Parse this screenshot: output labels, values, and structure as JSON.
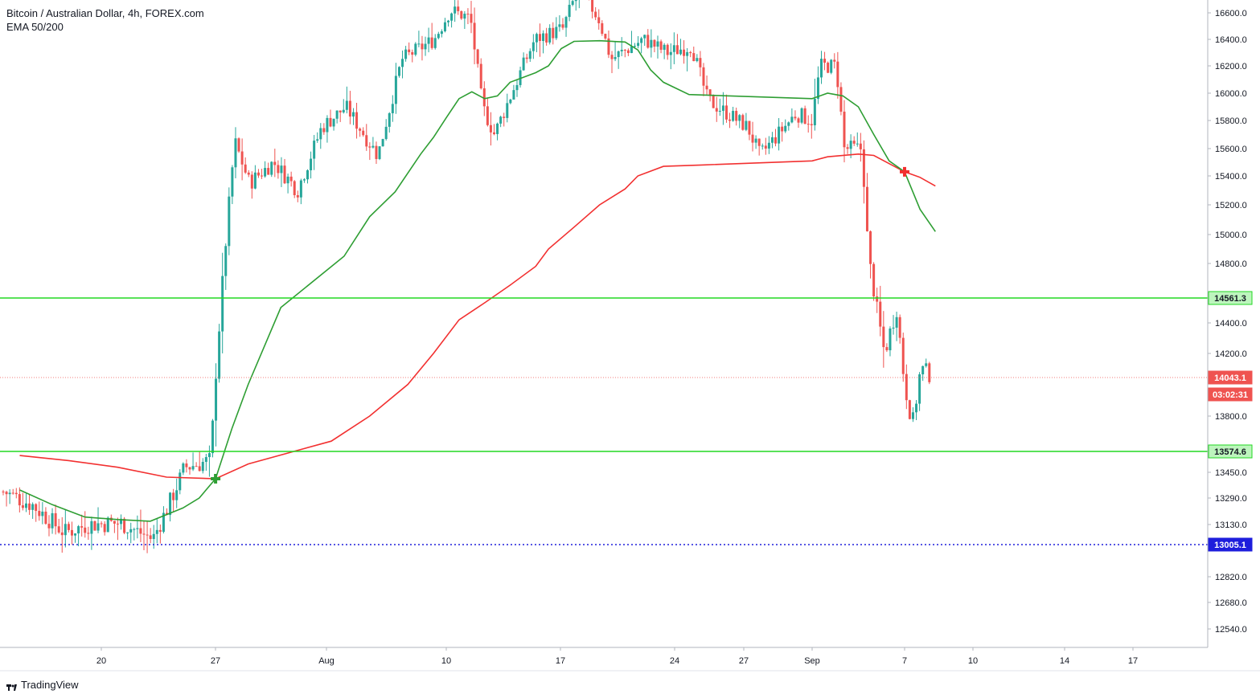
{
  "header": {
    "title": "Bitcoin / Australian Dollar, 4h, FOREX.com",
    "indicator": "EMA 50/200"
  },
  "footer": {
    "brand": "TradingView"
  },
  "colors": {
    "up": "#26a69a",
    "down": "#ef5350",
    "ema50": "#2e9e33",
    "ema200": "#f23030",
    "level": "#22d822",
    "low_line": "#1e1edc",
    "price_line": "#ef5350",
    "grid": "#f0f3fa"
  },
  "chart_data": {
    "type": "candlestick",
    "symbol": "BTCAUD",
    "timeframe": "4h",
    "x_ticks": [
      "20",
      "27",
      "Aug",
      "10",
      "17",
      "24",
      "27",
      "Sep",
      "7",
      "10",
      "14",
      "17"
    ],
    "y_ticks": [
      16600.0,
      16400.0,
      16200.0,
      16000.0,
      15800.0,
      15600.0,
      15400.0,
      15200.0,
      15000.0,
      14800.0,
      14400.0,
      14200.0,
      13800.0,
      13450.0,
      13290.0,
      13130.0,
      12820.0,
      12680.0,
      12540.0
    ],
    "levels": [
      {
        "name": "resistance",
        "value": 14561.3,
        "label": "14561.3",
        "style": "solid"
      },
      {
        "name": "support",
        "value": 13574.6,
        "label": "13574.6",
        "style": "solid"
      },
      {
        "name": "low",
        "value": 13005.1,
        "label": "13005.1",
        "style": "dotted"
      }
    ],
    "last_price": {
      "value": 14043.1,
      "label": "14043.1",
      "countdown": "03:02:31"
    },
    "ema_crosses": [
      {
        "type": "golden",
        "date": "Jul 27",
        "value": 13410
      },
      {
        "type": "death",
        "date": "Sep 7",
        "value": 15430
      }
    ],
    "ema50": [
      [
        "Jul 15",
        13340
      ],
      [
        "Jul 17",
        13250
      ],
      [
        "Jul 19",
        13175
      ],
      [
        "Jul 21",
        13160
      ],
      [
        "Jul 23",
        13150
      ],
      [
        "Jul 25",
        13230
      ],
      [
        "Jul 26",
        13290
      ],
      [
        "Jul 27",
        13410
      ],
      [
        "Jul 28",
        13720
      ],
      [
        "Jul 29",
        14000
      ],
      [
        "Jul 31",
        14500
      ],
      [
        "Aug 2",
        14850
      ],
      [
        "Aug 4",
        15120
      ],
      [
        "Aug 6",
        15290
      ],
      [
        "Aug 8",
        15560
      ],
      [
        "Aug 9",
        15680
      ],
      [
        "Aug 10",
        15820
      ],
      [
        "Aug 11",
        15960
      ],
      [
        "Aug 12",
        16010
      ],
      [
        "Aug 13",
        15960
      ],
      [
        "Aug 14",
        15980
      ],
      [
        "Aug 15",
        16080
      ],
      [
        "Aug 17",
        16150
      ],
      [
        "Aug 18",
        16200
      ],
      [
        "Aug 19",
        16330
      ],
      [
        "Aug 20",
        16385
      ],
      [
        "Aug 22",
        16390
      ],
      [
        "Aug 24",
        16380
      ],
      [
        "Aug 25",
        16320
      ],
      [
        "Aug 26",
        16170
      ],
      [
        "Aug 27",
        16080
      ],
      [
        "Aug 29",
        15990
      ],
      [
        "Sep 1",
        15960
      ],
      [
        "Sep 2",
        16000
      ],
      [
        "Sep 3",
        15980
      ],
      [
        "Sep 4",
        15900
      ],
      [
        "Sep 5",
        15700
      ],
      [
        "Sep 6",
        15510
      ],
      [
        "Sep 7",
        15430
      ],
      [
        "Sep 8",
        15170
      ],
      [
        "Sep 9",
        15020
      ]
    ],
    "ema200": [
      [
        "Jul 15",
        13550
      ],
      [
        "Jul 18",
        13520
      ],
      [
        "Jul 21",
        13480
      ],
      [
        "Jul 24",
        13420
      ],
      [
        "Jul 27",
        13410
      ],
      [
        "Jul 29",
        13500
      ],
      [
        "Aug 1",
        13640
      ],
      [
        "Aug 4",
        13800
      ],
      [
        "Aug 7",
        14000
      ],
      [
        "Aug 9",
        14200
      ],
      [
        "Aug 11",
        14420
      ],
      [
        "Aug 13",
        14530
      ],
      [
        "Aug 15",
        14650
      ],
      [
        "Aug 17",
        14780
      ],
      [
        "Aug 18",
        14900
      ],
      [
        "Aug 20",
        15050
      ],
      [
        "Aug 22",
        15200
      ],
      [
        "Aug 24",
        15310
      ],
      [
        "Aug 25",
        15400
      ],
      [
        "Aug 27",
        15470
      ],
      [
        "Aug 30",
        15480
      ],
      [
        "Sep 1",
        15510
      ],
      [
        "Sep 2",
        15540
      ],
      [
        "Sep 4",
        15560
      ],
      [
        "Sep 5",
        15550
      ],
      [
        "Sep 6",
        15490
      ],
      [
        "Sep 7",
        15430
      ],
      [
        "Sep 8",
        15390
      ],
      [
        "Sep 9",
        15330
      ]
    ]
  }
}
